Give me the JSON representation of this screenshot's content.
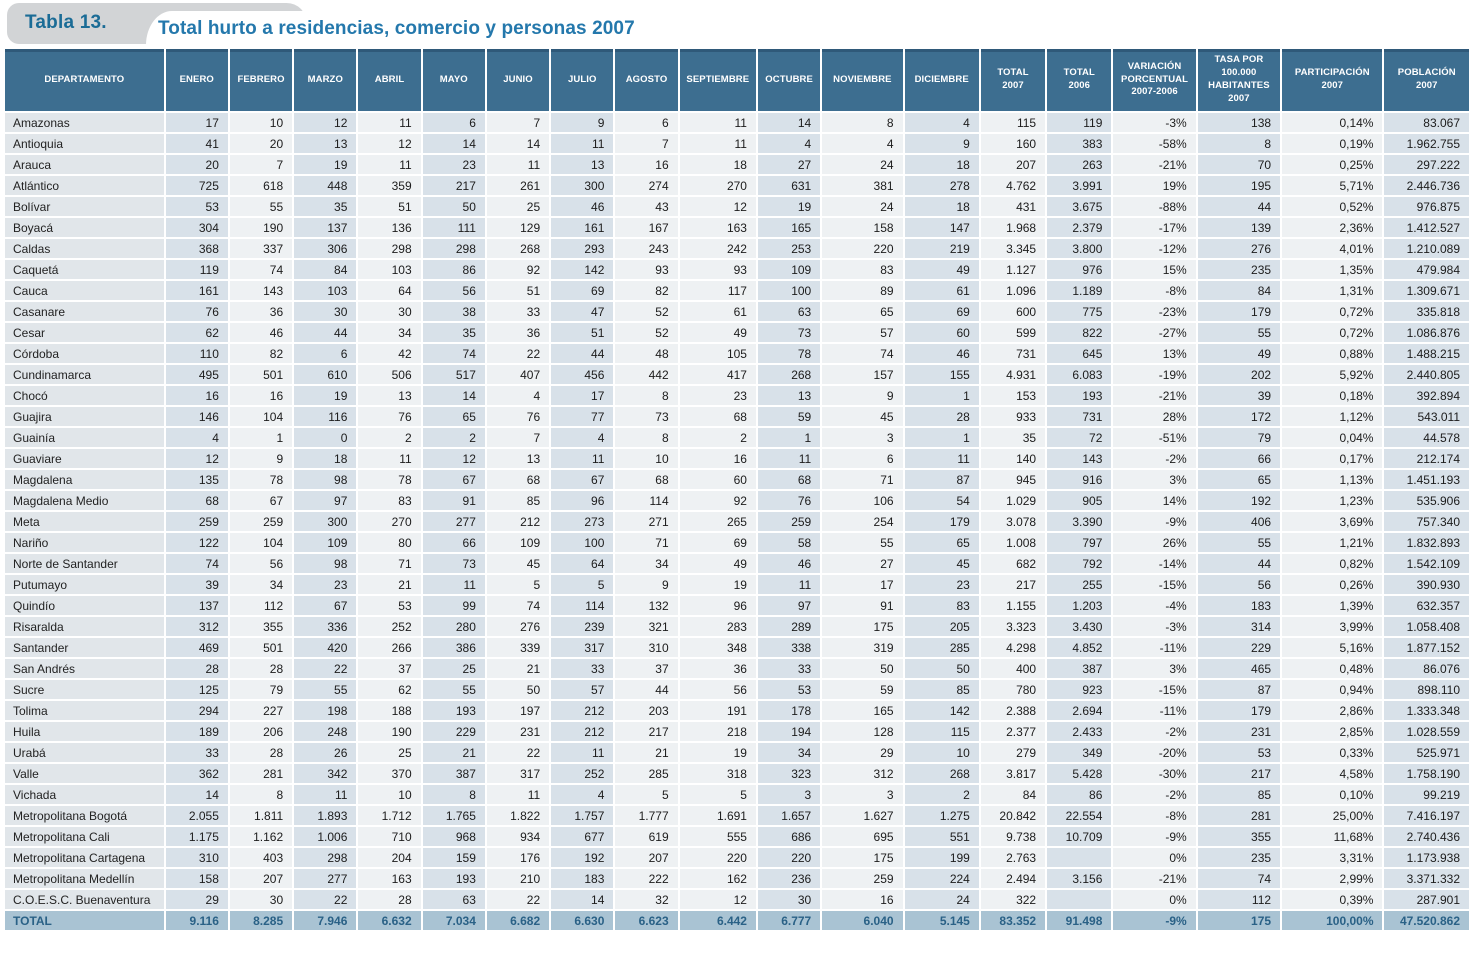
{
  "header": {
    "badge": "Tabla 13.",
    "title": "Total hurto a residencias, comercio y personas 2007",
    "badge_bg": "#d2d4d6",
    "badge_text_color": "#1b6c96",
    "title_color": "#2478ac"
  },
  "table": {
    "header_bg": "#3d6e90",
    "stripe_dark": "#d8e1e9",
    "stripe_light": "#eef1f3",
    "total_row_bg": "#a9c3d3",
    "total_row_text_color": "#2a6186",
    "columns": [
      "DEPARTAMENTO",
      "ENERO",
      "FEBRERO",
      "MARZO",
      "ABRIL",
      "MAYO",
      "JUNIO",
      "JULIO",
      "AGOSTO",
      "SEPTIEMBRE",
      "OCTUBRE",
      "NOVIEMBRE",
      "DICIEMBRE",
      "TOTAL\n2007",
      "TOTAL\n2006",
      "VARIACIÓN\nPORCENTUAL\n2007-2006",
      "TASA POR\n100.000\nHABITANTES\n2007",
      "PARTICIPACIÓN\n2007",
      "POBLACIÓN\n2007"
    ],
    "rows": [
      {
        "name": "Amazonas",
        "values": [
          "17",
          "10",
          "12",
          "11",
          "6",
          "7",
          "9",
          "6",
          "11",
          "14",
          "8",
          "4",
          "115",
          "119",
          "-3%",
          "138",
          "0,14%",
          "83.067"
        ]
      },
      {
        "name": "Antioquia",
        "values": [
          "41",
          "20",
          "13",
          "12",
          "14",
          "14",
          "11",
          "7",
          "11",
          "4",
          "4",
          "9",
          "160",
          "383",
          "-58%",
          "8",
          "0,19%",
          "1.962.755"
        ]
      },
      {
        "name": "Arauca",
        "values": [
          "20",
          "7",
          "19",
          "11",
          "23",
          "11",
          "13",
          "16",
          "18",
          "27",
          "24",
          "18",
          "207",
          "263",
          "-21%",
          "70",
          "0,25%",
          "297.222"
        ]
      },
      {
        "name": "Atlántico",
        "values": [
          "725",
          "618",
          "448",
          "359",
          "217",
          "261",
          "300",
          "274",
          "270",
          "631",
          "381",
          "278",
          "4.762",
          "3.991",
          "19%",
          "195",
          "5,71%",
          "2.446.736"
        ]
      },
      {
        "name": "Bolívar",
        "values": [
          "53",
          "55",
          "35",
          "51",
          "50",
          "25",
          "46",
          "43",
          "12",
          "19",
          "24",
          "18",
          "431",
          "3.675",
          "-88%",
          "44",
          "0,52%",
          "976.875"
        ]
      },
      {
        "name": "Boyacá",
        "values": [
          "304",
          "190",
          "137",
          "136",
          "111",
          "129",
          "161",
          "167",
          "163",
          "165",
          "158",
          "147",
          "1.968",
          "2.379",
          "-17%",
          "139",
          "2,36%",
          "1.412.527"
        ]
      },
      {
        "name": "Caldas",
        "values": [
          "368",
          "337",
          "306",
          "298",
          "298",
          "268",
          "293",
          "243",
          "242",
          "253",
          "220",
          "219",
          "3.345",
          "3.800",
          "-12%",
          "276",
          "4,01%",
          "1.210.089"
        ]
      },
      {
        "name": "Caquetá",
        "values": [
          "119",
          "74",
          "84",
          "103",
          "86",
          "92",
          "142",
          "93",
          "93",
          "109",
          "83",
          "49",
          "1.127",
          "976",
          "15%",
          "235",
          "1,35%",
          "479.984"
        ]
      },
      {
        "name": "Cauca",
        "values": [
          "161",
          "143",
          "103",
          "64",
          "56",
          "51",
          "69",
          "82",
          "117",
          "100",
          "89",
          "61",
          "1.096",
          "1.189",
          "-8%",
          "84",
          "1,31%",
          "1.309.671"
        ]
      },
      {
        "name": "Casanare",
        "values": [
          "76",
          "36",
          "30",
          "30",
          "38",
          "33",
          "47",
          "52",
          "61",
          "63",
          "65",
          "69",
          "600",
          "775",
          "-23%",
          "179",
          "0,72%",
          "335.818"
        ]
      },
      {
        "name": "Cesar",
        "values": [
          "62",
          "46",
          "44",
          "34",
          "35",
          "36",
          "51",
          "52",
          "49",
          "73",
          "57",
          "60",
          "599",
          "822",
          "-27%",
          "55",
          "0,72%",
          "1.086.876"
        ]
      },
      {
        "name": "Córdoba",
        "values": [
          "110",
          "82",
          "6",
          "42",
          "74",
          "22",
          "44",
          "48",
          "105",
          "78",
          "74",
          "46",
          "731",
          "645",
          "13%",
          "49",
          "0,88%",
          "1.488.215"
        ]
      },
      {
        "name": "Cundinamarca",
        "values": [
          "495",
          "501",
          "610",
          "506",
          "517",
          "407",
          "456",
          "442",
          "417",
          "268",
          "157",
          "155",
          "4.931",
          "6.083",
          "-19%",
          "202",
          "5,92%",
          "2.440.805"
        ]
      },
      {
        "name": "Chocó",
        "values": [
          "16",
          "16",
          "19",
          "13",
          "14",
          "4",
          "17",
          "8",
          "23",
          "13",
          "9",
          "1",
          "153",
          "193",
          "-21%",
          "39",
          "0,18%",
          "392.894"
        ]
      },
      {
        "name": "Guajira",
        "values": [
          "146",
          "104",
          "116",
          "76",
          "65",
          "76",
          "77",
          "73",
          "68",
          "59",
          "45",
          "28",
          "933",
          "731",
          "28%",
          "172",
          "1,12%",
          "543.011"
        ]
      },
      {
        "name": "Guainía",
        "values": [
          "4",
          "1",
          "0",
          "2",
          "2",
          "7",
          "4",
          "8",
          "2",
          "1",
          "3",
          "1",
          "35",
          "72",
          "-51%",
          "79",
          "0,04%",
          "44.578"
        ]
      },
      {
        "name": "Guaviare",
        "values": [
          "12",
          "9",
          "18",
          "11",
          "12",
          "13",
          "11",
          "10",
          "16",
          "11",
          "6",
          "11",
          "140",
          "143",
          "-2%",
          "66",
          "0,17%",
          "212.174"
        ]
      },
      {
        "name": "Magdalena",
        "values": [
          "135",
          "78",
          "98",
          "78",
          "67",
          "68",
          "67",
          "68",
          "60",
          "68",
          "71",
          "87",
          "945",
          "916",
          "3%",
          "65",
          "1,13%",
          "1.451.193"
        ]
      },
      {
        "name": "Magdalena Medio",
        "values": [
          "68",
          "67",
          "97",
          "83",
          "91",
          "85",
          "96",
          "114",
          "92",
          "76",
          "106",
          "54",
          "1.029",
          "905",
          "14%",
          "192",
          "1,23%",
          "535.906"
        ]
      },
      {
        "name": "Meta",
        "values": [
          "259",
          "259",
          "300",
          "270",
          "277",
          "212",
          "273",
          "271",
          "265",
          "259",
          "254",
          "179",
          "3.078",
          "3.390",
          "-9%",
          "406",
          "3,69%",
          "757.340"
        ]
      },
      {
        "name": "Nariño",
        "values": [
          "122",
          "104",
          "109",
          "80",
          "66",
          "109",
          "100",
          "71",
          "69",
          "58",
          "55",
          "65",
          "1.008",
          "797",
          "26%",
          "55",
          "1,21%",
          "1.832.893"
        ]
      },
      {
        "name": "Norte de Santander",
        "values": [
          "74",
          "56",
          "98",
          "71",
          "73",
          "45",
          "64",
          "34",
          "49",
          "46",
          "27",
          "45",
          "682",
          "792",
          "-14%",
          "44",
          "0,82%",
          "1.542.109"
        ]
      },
      {
        "name": "Putumayo",
        "values": [
          "39",
          "34",
          "23",
          "21",
          "11",
          "5",
          "5",
          "9",
          "19",
          "11",
          "17",
          "23",
          "217",
          "255",
          "-15%",
          "56",
          "0,26%",
          "390.930"
        ]
      },
      {
        "name": "Quindío",
        "values": [
          "137",
          "112",
          "67",
          "53",
          "99",
          "74",
          "114",
          "132",
          "96",
          "97",
          "91",
          "83",
          "1.155",
          "1.203",
          "-4%",
          "183",
          "1,39%",
          "632.357"
        ]
      },
      {
        "name": "Risaralda",
        "values": [
          "312",
          "355",
          "336",
          "252",
          "280",
          "276",
          "239",
          "321",
          "283",
          "289",
          "175",
          "205",
          "3.323",
          "3.430",
          "-3%",
          "314",
          "3,99%",
          "1.058.408"
        ]
      },
      {
        "name": "Santander",
        "values": [
          "469",
          "501",
          "420",
          "266",
          "386",
          "339",
          "317",
          "310",
          "348",
          "338",
          "319",
          "285",
          "4.298",
          "4.852",
          "-11%",
          "229",
          "5,16%",
          "1.877.152"
        ]
      },
      {
        "name": "San Andrés",
        "values": [
          "28",
          "28",
          "22",
          "37",
          "25",
          "21",
          "33",
          "37",
          "36",
          "33",
          "50",
          "50",
          "400",
          "387",
          "3%",
          "465",
          "0,48%",
          "86.076"
        ]
      },
      {
        "name": "Sucre",
        "values": [
          "125",
          "79",
          "55",
          "62",
          "55",
          "50",
          "57",
          "44",
          "56",
          "53",
          "59",
          "85",
          "780",
          "923",
          "-15%",
          "87",
          "0,94%",
          "898.110"
        ]
      },
      {
        "name": "Tolima",
        "values": [
          "294",
          "227",
          "198",
          "188",
          "193",
          "197",
          "212",
          "203",
          "191",
          "178",
          "165",
          "142",
          "2.388",
          "2.694",
          "-11%",
          "179",
          "2,86%",
          "1.333.348"
        ]
      },
      {
        "name": "Huila",
        "values": [
          "189",
          "206",
          "248",
          "190",
          "229",
          "231",
          "212",
          "217",
          "218",
          "194",
          "128",
          "115",
          "2.377",
          "2.433",
          "-2%",
          "231",
          "2,85%",
          "1.028.559"
        ]
      },
      {
        "name": "Urabá",
        "values": [
          "33",
          "28",
          "26",
          "25",
          "21",
          "22",
          "11",
          "21",
          "19",
          "34",
          "29",
          "10",
          "279",
          "349",
          "-20%",
          "53",
          "0,33%",
          "525.971"
        ]
      },
      {
        "name": "Valle",
        "values": [
          "362",
          "281",
          "342",
          "370",
          "387",
          "317",
          "252",
          "285",
          "318",
          "323",
          "312",
          "268",
          "3.817",
          "5.428",
          "-30%",
          "217",
          "4,58%",
          "1.758.190"
        ]
      },
      {
        "name": "Vichada",
        "values": [
          "14",
          "8",
          "11",
          "10",
          "8",
          "11",
          "4",
          "5",
          "5",
          "3",
          "3",
          "2",
          "84",
          "86",
          "-2%",
          "85",
          "0,10%",
          "99.219"
        ]
      },
      {
        "name": "Metropolitana Bogotá",
        "values": [
          "2.055",
          "1.811",
          "1.893",
          "1.712",
          "1.765",
          "1.822",
          "1.757",
          "1.777",
          "1.691",
          "1.657",
          "1.627",
          "1.275",
          "20.842",
          "22.554",
          "-8%",
          "281",
          "25,00%",
          "7.416.197"
        ]
      },
      {
        "name": "Metropolitana Cali",
        "values": [
          "1.175",
          "1.162",
          "1.006",
          "710",
          "968",
          "934",
          "677",
          "619",
          "555",
          "686",
          "695",
          "551",
          "9.738",
          "10.709",
          "-9%",
          "355",
          "11,68%",
          "2.740.436"
        ]
      },
      {
        "name": "Metropolitana Cartagena",
        "values": [
          "310",
          "403",
          "298",
          "204",
          "159",
          "176",
          "192",
          "207",
          "220",
          "220",
          "175",
          "199",
          "2.763",
          "",
          "0%",
          "235",
          "3,31%",
          "1.173.938"
        ]
      },
      {
        "name": "Metropolitana Medellín",
        "values": [
          "158",
          "207",
          "277",
          "163",
          "193",
          "210",
          "183",
          "222",
          "162",
          "236",
          "259",
          "224",
          "2.494",
          "3.156",
          "-21%",
          "74",
          "2,99%",
          "3.371.332"
        ]
      },
      {
        "name": "C.O.E.S.C. Buenaventura",
        "values": [
          "29",
          "30",
          "22",
          "28",
          "63",
          "22",
          "14",
          "32",
          "12",
          "30",
          "16",
          "24",
          "322",
          "",
          "0%",
          "112",
          "0,39%",
          "287.901"
        ]
      }
    ],
    "total_row": {
      "name": "TOTAL",
      "values": [
        "9.116",
        "8.285",
        "7.946",
        "6.632",
        "7.034",
        "6.682",
        "6.630",
        "6.623",
        "6.442",
        "6.777",
        "6.040",
        "5.145",
        "83.352",
        "91.498",
        "-9%",
        "175",
        "100,00%",
        "47.520.862"
      ]
    }
  }
}
